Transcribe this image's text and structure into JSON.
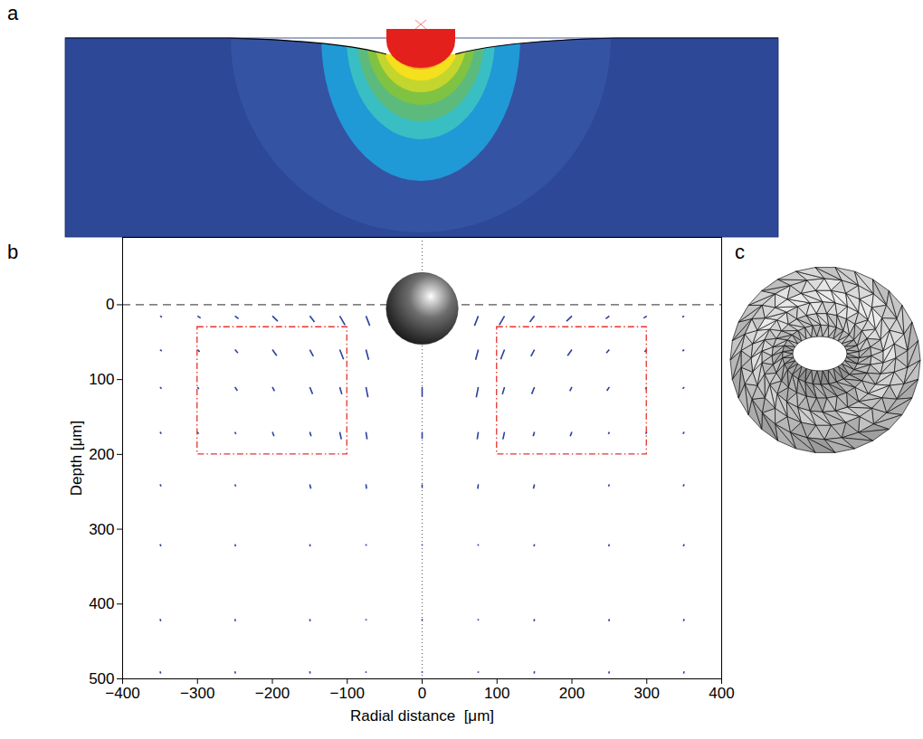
{
  "panel_labels": [
    "a",
    "b",
    "c"
  ],
  "chart_data": {
    "type": "quiver",
    "xlabel": "Radial distance  [μm]",
    "ylabel": "Depth [μm]",
    "xlim": [
      -400,
      400
    ],
    "ylim": [
      -90,
      500
    ],
    "xticks": [
      -400,
      -300,
      -200,
      -100,
      0,
      100,
      200,
      300,
      400
    ],
    "yticks": [
      0,
      100,
      200,
      300,
      400,
      500
    ],
    "color": "#2a3f9e",
    "indenter": {
      "x": 0,
      "y": 5,
      "radius": 48
    },
    "reference_lines": [
      {
        "y": 0,
        "line_style": "dashed",
        "color": "#555555"
      },
      {
        "x": 0,
        "line_style": "dotted",
        "color": "#555555"
      }
    ],
    "regions": [
      {
        "x": [
          -300,
          -100
        ],
        "y": [
          30,
          200
        ],
        "color": "#e8322c",
        "line_style": "dashdot"
      },
      {
        "x": [
          100,
          300
        ],
        "y": [
          30,
          200
        ],
        "color": "#e8322c",
        "line_style": "dashdot"
      }
    ],
    "vectors": {
      "x": [
        0,
        0,
        0,
        0,
        0,
        0,
        75,
        75,
        75,
        75,
        75,
        75,
        75,
        75,
        110,
        110,
        110,
        110,
        150,
        150,
        150,
        150,
        150,
        150,
        150,
        150,
        200,
        200,
        200,
        200,
        250,
        250,
        250,
        250,
        250,
        250,
        250,
        250,
        300,
        300,
        300,
        300,
        350,
        350,
        350,
        350,
        350,
        350,
        350,
        350,
        -75,
        -75,
        -75,
        -75,
        -75,
        -75,
        -75,
        -75,
        -110,
        -110,
        -110,
        -110,
        -150,
        -150,
        -150,
        -150,
        -150,
        -150,
        -150,
        -150,
        -200,
        -200,
        -200,
        -200,
        -250,
        -250,
        -250,
        -250,
        -250,
        -250,
        -250,
        -250,
        -300,
        -300,
        -300,
        -300,
        -350,
        -350,
        -350,
        -350,
        -350,
        -350,
        -350,
        -350
      ],
      "y": [
        110,
        170,
        240,
        320,
        420,
        490,
        15,
        60,
        110,
        170,
        240,
        320,
        420,
        490,
        15,
        60,
        110,
        170,
        15,
        60,
        110,
        170,
        240,
        320,
        420,
        490,
        15,
        60,
        110,
        170,
        15,
        60,
        110,
        170,
        240,
        320,
        420,
        490,
        15,
        60,
        110,
        170,
        15,
        60,
        110,
        170,
        240,
        320,
        420,
        490,
        15,
        60,
        110,
        170,
        240,
        320,
        420,
        490,
        15,
        60,
        110,
        170,
        15,
        60,
        110,
        170,
        240,
        320,
        420,
        490,
        15,
        60,
        110,
        170,
        15,
        60,
        110,
        170,
        240,
        320,
        420,
        490,
        15,
        60,
        110,
        170,
        15,
        60,
        110,
        170,
        240,
        320,
        420,
        490
      ],
      "u": [
        0,
        0,
        0,
        0,
        0,
        0,
        -5.1,
        -3.6,
        -2.7,
        -1.5,
        -0.7,
        -0.3,
        -0.2,
        -0.2,
        -7.0,
        -5.1,
        -2.8,
        -2.1,
        -6.2,
        -4.7,
        -3.7,
        -1.7,
        -1.4,
        -0.6,
        -0.5,
        -0.4,
        -7.2,
        -5.8,
        -2.8,
        -2.2,
        -4.8,
        -4.0,
        -3.3,
        -1.3,
        -1.1,
        -0.9,
        -0.7,
        -0.6,
        -4.2,
        -2.9,
        -1.9,
        -1.5,
        -2.6,
        -2.3,
        -2.0,
        -1.7,
        -1.4,
        -1.2,
        -1.0,
        -0.9,
        5.1,
        3.6,
        2.7,
        1.5,
        0.7,
        0.3,
        0.2,
        0.2,
        7.0,
        5.1,
        2.8,
        2.1,
        6.2,
        4.7,
        3.7,
        1.7,
        1.4,
        0.6,
        0.5,
        0.4,
        7.2,
        5.8,
        2.8,
        2.2,
        4.8,
        4.0,
        3.3,
        1.3,
        1.1,
        0.9,
        0.7,
        0.6,
        4.2,
        2.9,
        1.9,
        1.5,
        2.6,
        2.3,
        2.0,
        1.7,
        1.4,
        1.2,
        1.0,
        0.9
      ],
      "v": [
        13,
        9,
        5,
        2,
        2,
        2,
        13.0,
        13.5,
        13.7,
        9.9,
        5.9,
        2.0,
        2.0,
        2.0,
        12.1,
        13.0,
        9.6,
        9.8,
        7.9,
        8.8,
        9.3,
        5.7,
        5.8,
        2.9,
        3.0,
        3.0,
        6.9,
        8.1,
        5.3,
        5.6,
        3.6,
        4.5,
        5.0,
        2.7,
        2.8,
        2.9,
        2.9,
        2.9,
        2.7,
        2.7,
        2.4,
        2.6,
        1.4,
        1.9,
        2.2,
        2.5,
        2.6,
        2.8,
        2.8,
        2.9,
        13.0,
        13.5,
        13.7,
        9.9,
        5.9,
        2.0,
        2.0,
        2.0,
        12.1,
        13.0,
        9.6,
        9.8,
        7.9,
        8.8,
        9.3,
        5.7,
        5.8,
        2.9,
        3.0,
        3.0,
        6.9,
        8.1,
        5.3,
        5.6,
        3.6,
        4.5,
        5.0,
        2.7,
        2.8,
        2.9,
        2.9,
        2.9,
        2.7,
        2.7,
        2.4,
        2.6,
        1.4,
        1.9,
        2.2,
        2.5,
        2.6,
        2.8,
        2.8,
        2.9
      ]
    }
  }
}
